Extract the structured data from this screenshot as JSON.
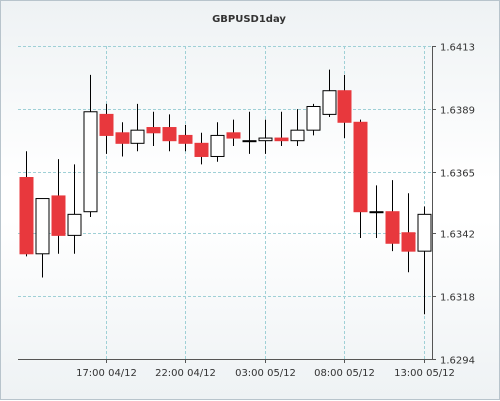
{
  "chart_data": {
    "type": "candlestick",
    "title": "GBPUSD1day",
    "ylim": [
      1.6294,
      1.6413
    ],
    "yticks": [
      "1.6413",
      "1.6389",
      "1.6365",
      "1.6342",
      "1.6318",
      "1.6294"
    ],
    "xticks": [
      {
        "label": "17:00 04/12",
        "index": 5
      },
      {
        "label": "22:00 04/12",
        "index": 10
      },
      {
        "label": "03:00 05/12",
        "index": 15
      },
      {
        "label": "08:00 05/12",
        "index": 20
      },
      {
        "label": "13:00 05/12",
        "index": 25
      }
    ],
    "grid": true,
    "colors": {
      "bull": "#ffffff",
      "bear": "#e8383d",
      "wick": "#000000",
      "grid": "#9fd0d6"
    },
    "candles": [
      {
        "o": 1.6363,
        "h": 1.6373,
        "l": 1.6333,
        "c": 1.6334
      },
      {
        "o": 1.6334,
        "h": 1.6354,
        "l": 1.6325,
        "c": 1.6355
      },
      {
        "o": 1.6356,
        "h": 1.637,
        "l": 1.6334,
        "c": 1.6341
      },
      {
        "o": 1.6341,
        "h": 1.6368,
        "l": 1.6334,
        "c": 1.6349
      },
      {
        "o": 1.635,
        "h": 1.6402,
        "l": 1.6348,
        "c": 1.6388
      },
      {
        "o": 1.6387,
        "h": 1.6391,
        "l": 1.6372,
        "c": 1.6379
      },
      {
        "o": 1.638,
        "h": 1.6384,
        "l": 1.6371,
        "c": 1.6376
      },
      {
        "o": 1.6376,
        "h": 1.6391,
        "l": 1.6373,
        "c": 1.6381
      },
      {
        "o": 1.6382,
        "h": 1.6388,
        "l": 1.6375,
        "c": 1.638
      },
      {
        "o": 1.6382,
        "h": 1.6387,
        "l": 1.6373,
        "c": 1.6377
      },
      {
        "o": 1.6379,
        "h": 1.6383,
        "l": 1.6373,
        "c": 1.6376
      },
      {
        "o": 1.6376,
        "h": 1.638,
        "l": 1.6368,
        "c": 1.6371
      },
      {
        "o": 1.6371,
        "h": 1.6384,
        "l": 1.6369,
        "c": 1.6379
      },
      {
        "o": 1.638,
        "h": 1.6385,
        "l": 1.6375,
        "c": 1.6378
      },
      {
        "o": 1.6377,
        "h": 1.6388,
        "l": 1.6372,
        "c": 1.6377
      },
      {
        "o": 1.6377,
        "h": 1.6385,
        "l": 1.6372,
        "c": 1.6378
      },
      {
        "o": 1.6378,
        "h": 1.6388,
        "l": 1.6375,
        "c": 1.6377
      },
      {
        "o": 1.6377,
        "h": 1.6389,
        "l": 1.6375,
        "c": 1.6381
      },
      {
        "o": 1.6381,
        "h": 1.6391,
        "l": 1.6379,
        "c": 1.639
      },
      {
        "o": 1.6387,
        "h": 1.6404,
        "l": 1.6386,
        "c": 1.6396
      },
      {
        "o": 1.6396,
        "h": 1.6402,
        "l": 1.6378,
        "c": 1.6384
      },
      {
        "o": 1.6384,
        "h": 1.6385,
        "l": 1.634,
        "c": 1.635
      },
      {
        "o": 1.635,
        "h": 1.636,
        "l": 1.634,
        "c": 1.635
      },
      {
        "o": 1.635,
        "h": 1.6362,
        "l": 1.6335,
        "c": 1.6338
      },
      {
        "o": 1.6342,
        "h": 1.6357,
        "l": 1.6327,
        "c": 1.6335
      },
      {
        "o": 1.6335,
        "h": 1.6352,
        "l": 1.6311,
        "c": 1.6349
      }
    ]
  }
}
